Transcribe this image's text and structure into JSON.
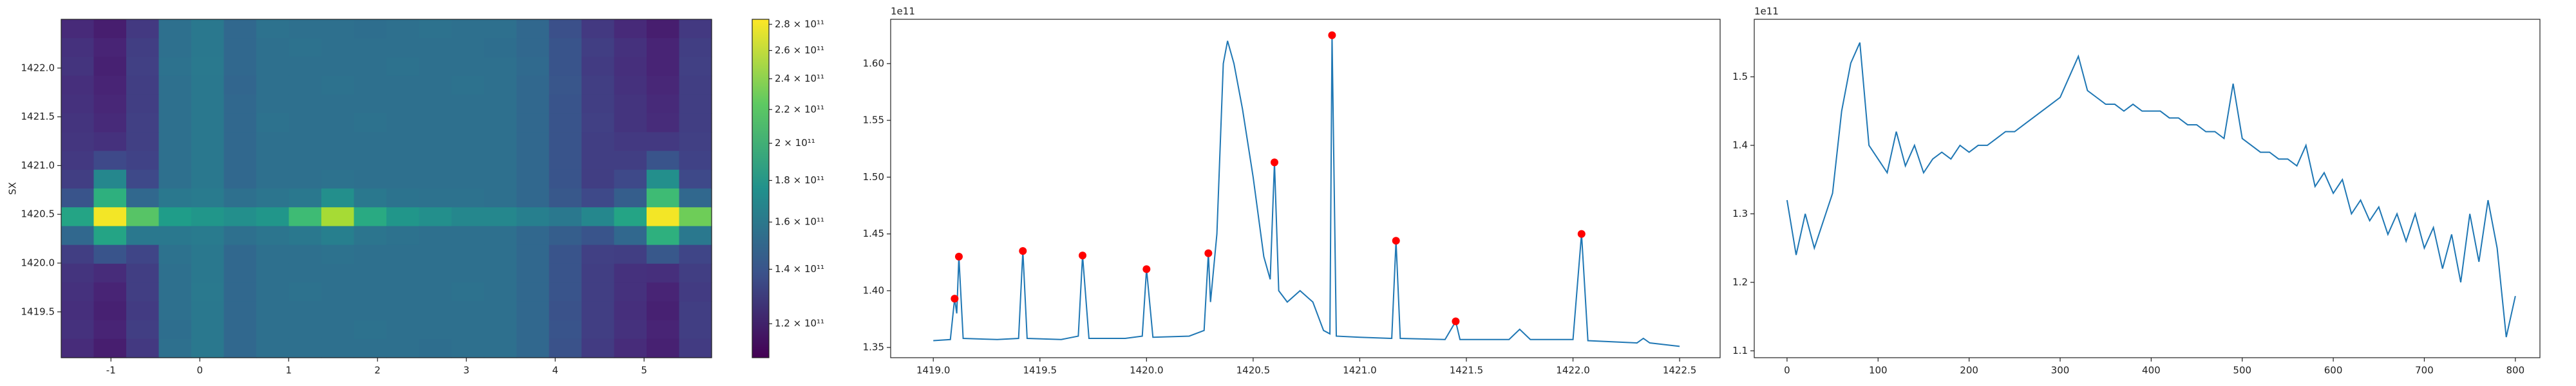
{
  "chart_data": [
    {
      "type": "heatmap",
      "ylabel": "SX",
      "colormap": "viridis",
      "xlim": [
        -1.56,
        5.76
      ],
      "ylim": [
        1419.03,
        1422.5
      ],
      "xticks": [
        -1,
        0,
        1,
        2,
        3,
        4,
        5
      ],
      "yticks": [
        {
          "value": 1419.5,
          "label": "1419.5"
        },
        {
          "value": 1420,
          "label": "1420.0"
        },
        {
          "value": 1420.5,
          "label": "1420.5"
        },
        {
          "value": 1421,
          "label": "1421.0"
        },
        {
          "value": 1421.5,
          "label": "1421.5"
        },
        {
          "value": 1422,
          "label": "1422.0"
        }
      ],
      "clim": [
        109000000000.0,
        284000000000.0
      ],
      "clog": true,
      "cticks": [
        {
          "value": 120000000000.0,
          "label": "1.2 × 10¹¹"
        },
        {
          "value": 140000000000.0,
          "label": "1.4 × 10¹¹"
        },
        {
          "value": 160000000000.0,
          "label": "1.6 × 10¹¹"
        },
        {
          "value": 180000000000.0,
          "label": "1.8 × 10¹¹"
        },
        {
          "value": 200000000000.0,
          "label": "2 × 10¹¹"
        },
        {
          "value": 220000000000.0,
          "label": "2.2 × 10¹¹"
        },
        {
          "value": 240000000000.0,
          "label": "2.4 × 10¹¹"
        },
        {
          "value": 260000000000.0,
          "label": "2.6 × 10¹¹"
        },
        {
          "value": 280000000000.0,
          "label": "2.8 × 10¹¹"
        }
      ],
      "z": [
        [
          122000000000.0,
          118000000000.0,
          128000000000.0,
          155000000000.0,
          160000000000.0,
          150000000000.0,
          156000000000.0,
          155000000000.0,
          155000000000.0,
          154000000000.0,
          155000000000.0,
          156000000000.0,
          155000000000.0,
          155000000000.0,
          150000000000.0,
          138000000000.0,
          128000000000.0,
          122000000000.0,
          118000000000.0,
          128000000000.0
        ],
        [
          125000000000.0,
          120000000000.0,
          130000000000.0,
          155000000000.0,
          160000000000.0,
          150000000000.0,
          155000000000.0,
          156000000000.0,
          155000000000.0,
          155000000000.0,
          155000000000.0,
          155000000000.0,
          155000000000.0,
          154000000000.0,
          150000000000.0,
          140000000000.0,
          130000000000.0,
          125000000000.0,
          120000000000.0,
          130000000000.0
        ],
        [
          126000000000.0,
          119000000000.0,
          131000000000.0,
          156000000000.0,
          161000000000.0,
          150000000000.0,
          155000000000.0,
          155000000000.0,
          155000000000.0,
          155000000000.0,
          156000000000.0,
          155000000000.0,
          155000000000.0,
          155000000000.0,
          151000000000.0,
          140000000000.0,
          129000000000.0,
          124000000000.0,
          120000000000.0,
          131000000000.0
        ],
        [
          124000000000.0,
          120000000000.0,
          130000000000.0,
          155000000000.0,
          160000000000.0,
          149000000000.0,
          155000000000.0,
          155000000000.0,
          156000000000.0,
          155000000000.0,
          155000000000.0,
          155000000000.0,
          156000000000.0,
          155000000000.0,
          150000000000.0,
          141000000000.0,
          130000000000.0,
          125000000000.0,
          121000000000.0,
          130000000000.0
        ],
        [
          125000000000.0,
          121000000000.0,
          130000000000.0,
          155000000000.0,
          160000000000.0,
          150000000000.0,
          155000000000.0,
          155000000000.0,
          155000000000.0,
          155000000000.0,
          155000000000.0,
          155000000000.0,
          155000000000.0,
          155000000000.0,
          150000000000.0,
          140000000000.0,
          130000000000.0,
          126000000000.0,
          122000000000.0,
          130000000000.0
        ],
        [
          126000000000.0,
          122000000000.0,
          131000000000.0,
          155000000000.0,
          160000000000.0,
          150000000000.0,
          156000000000.0,
          155000000000.0,
          155000000000.0,
          156000000000.0,
          155000000000.0,
          155000000000.0,
          155000000000.0,
          155000000000.0,
          150000000000.0,
          140000000000.0,
          131000000000.0,
          126000000000.0,
          123000000000.0,
          130000000000.0
        ],
        [
          127000000000.0,
          125000000000.0,
          131000000000.0,
          155000000000.0,
          160000000000.0,
          150000000000.0,
          155000000000.0,
          155000000000.0,
          155000000000.0,
          155000000000.0,
          155000000000.0,
          155000000000.0,
          155000000000.0,
          155000000000.0,
          150000000000.0,
          140000000000.0,
          130000000000.0,
          128000000000.0,
          128000000000.0,
          131000000000.0
        ],
        [
          128000000000.0,
          135000000000.0,
          132000000000.0,
          155000000000.0,
          160000000000.0,
          150000000000.0,
          155000000000.0,
          155000000000.0,
          155000000000.0,
          155000000000.0,
          155000000000.0,
          155000000000.0,
          155000000000.0,
          155000000000.0,
          150000000000.0,
          140000000000.0,
          130000000000.0,
          130000000000.0,
          140000000000.0,
          132000000000.0
        ],
        [
          130000000000.0,
          170000000000.0,
          135000000000.0,
          155000000000.0,
          160000000000.0,
          150000000000.0,
          155000000000.0,
          155000000000.0,
          156000000000.0,
          155000000000.0,
          155000000000.0,
          155000000000.0,
          155000000000.0,
          155000000000.0,
          150000000000.0,
          140000000000.0,
          130000000000.0,
          135000000000.0,
          175000000000.0,
          135000000000.0
        ],
        [
          140000000000.0,
          200000000000.0,
          150000000000.0,
          160000000000.0,
          162000000000.0,
          155000000000.0,
          158000000000.0,
          160000000000.0,
          175000000000.0,
          160000000000.0,
          157000000000.0,
          156000000000.0,
          156000000000.0,
          155000000000.0,
          150000000000.0,
          142000000000.0,
          135000000000.0,
          145000000000.0,
          210000000000.0,
          150000000000.0
        ],
        [
          190000000000.0,
          280000000000.0,
          220000000000.0,
          185000000000.0,
          180000000000.0,
          175000000000.0,
          180000000000.0,
          210000000000.0,
          250000000000.0,
          195000000000.0,
          180000000000.0,
          175000000000.0,
          170000000000.0,
          170000000000.0,
          165000000000.0,
          160000000000.0,
          170000000000.0,
          190000000000.0,
          280000000000.0,
          230000000000.0
        ],
        [
          150000000000.0,
          190000000000.0,
          160000000000.0,
          160000000000.0,
          162000000000.0,
          155000000000.0,
          158000000000.0,
          160000000000.0,
          165000000000.0,
          158000000000.0,
          156000000000.0,
          155000000000.0,
          155000000000.0,
          155000000000.0,
          150000000000.0,
          145000000000.0,
          140000000000.0,
          150000000000.0,
          200000000000.0,
          160000000000.0
        ],
        [
          130000000000.0,
          140000000000.0,
          133000000000.0,
          156000000000.0,
          160000000000.0,
          150000000000.0,
          155000000000.0,
          155000000000.0,
          156000000000.0,
          155000000000.0,
          155000000000.0,
          155000000000.0,
          155000000000.0,
          155000000000.0,
          150000000000.0,
          140000000000.0,
          131000000000.0,
          130000000000.0,
          142000000000.0,
          133000000000.0
        ],
        [
          126000000000.0,
          123000000000.0,
          130000000000.0,
          155000000000.0,
          160000000000.0,
          150000000000.0,
          155000000000.0,
          155000000000.0,
          155000000000.0,
          155000000000.0,
          155000000000.0,
          155000000000.0,
          155000000000.0,
          155000000000.0,
          150000000000.0,
          140000000000.0,
          130000000000.0,
          125000000000.0,
          124000000000.0,
          130000000000.0
        ],
        [
          125000000000.0,
          120000000000.0,
          130000000000.0,
          155000000000.0,
          161000000000.0,
          150000000000.0,
          155000000000.0,
          156000000000.0,
          155000000000.0,
          155000000000.0,
          155000000000.0,
          155000000000.0,
          156000000000.0,
          155000000000.0,
          150000000000.0,
          140000000000.0,
          130000000000.0,
          125000000000.0,
          120000000000.0,
          129000000000.0
        ],
        [
          124000000000.0,
          119000000000.0,
          129000000000.0,
          155000000000.0,
          160000000000.0,
          150000000000.0,
          155000000000.0,
          155000000000.0,
          155000000000.0,
          155000000000.0,
          155000000000.0,
          155000000000.0,
          155000000000.0,
          155000000000.0,
          150000000000.0,
          139000000000.0,
          130000000000.0,
          124000000000.0,
          119000000000.0,
          130000000000.0
        ],
        [
          125000000000.0,
          120000000000.0,
          130000000000.0,
          154000000000.0,
          160000000000.0,
          150000000000.0,
          155000000000.0,
          155000000000.0,
          155000000000.0,
          156000000000.0,
          155000000000.0,
          155000000000.0,
          155000000000.0,
          155000000000.0,
          150000000000.0,
          140000000000.0,
          130000000000.0,
          125000000000.0,
          120000000000.0,
          130000000000.0
        ],
        [
          123000000000.0,
          118000000000.0,
          128000000000.0,
          155000000000.0,
          160000000000.0,
          150000000000.0,
          155000000000.0,
          155000000000.0,
          155000000000.0,
          155000000000.0,
          155000000000.0,
          154000000000.0,
          155000000000.0,
          155000000000.0,
          150000000000.0,
          139000000000.0,
          129000000000.0,
          123000000000.0,
          119000000000.0,
          129000000000.0
        ]
      ]
    },
    {
      "type": "line",
      "offset_label": "1e11",
      "color": "#1f77b4",
      "xlim": [
        1418.8,
        1422.69
      ],
      "ylim": [
        1.341,
        1.639
      ],
      "xticks": [
        {
          "value": 1419,
          "label": "1419.0"
        },
        {
          "value": 1419.5,
          "label": "1419.5"
        },
        {
          "value": 1420,
          "label": "1420.0"
        },
        {
          "value": 1420.5,
          "label": "1420.5"
        },
        {
          "value": 1421,
          "label": "1421.0"
        },
        {
          "value": 1421.5,
          "label": "1421.5"
        },
        {
          "value": 1422,
          "label": "1422.0"
        },
        {
          "value": 1422.5,
          "label": "1422.5"
        }
      ],
      "yticks": [
        {
          "value": 1.35,
          "label": "1.35"
        },
        {
          "value": 1.4,
          "label": "1.40"
        },
        {
          "value": 1.45,
          "label": "1.45"
        },
        {
          "value": 1.5,
          "label": "1.50"
        },
        {
          "value": 1.55,
          "label": "1.55"
        },
        {
          "value": 1.6,
          "label": "1.60"
        }
      ],
      "x": [
        1419.0,
        1419.08,
        1419.1,
        1419.11,
        1419.12,
        1419.14,
        1419.3,
        1419.4,
        1419.42,
        1419.44,
        1419.6,
        1419.68,
        1419.7,
        1419.73,
        1419.9,
        1419.98,
        1420.0,
        1420.03,
        1420.2,
        1420.27,
        1420.29,
        1420.3,
        1420.33,
        1420.36,
        1420.38,
        1420.41,
        1420.45,
        1420.5,
        1420.55,
        1420.58,
        1420.6,
        1420.62,
        1420.66,
        1420.72,
        1420.78,
        1420.83,
        1420.86,
        1420.87,
        1420.89,
        1421.0,
        1421.15,
        1421.17,
        1421.19,
        1421.4,
        1421.45,
        1421.47,
        1421.7,
        1421.75,
        1421.8,
        1422.0,
        1422.04,
        1422.07,
        1422.3,
        1422.33,
        1422.36,
        1422.5
      ],
      "values": [
        1.356,
        1.357,
        1.393,
        1.38,
        1.43,
        1.358,
        1.357,
        1.358,
        1.435,
        1.358,
        1.357,
        1.36,
        1.431,
        1.358,
        1.358,
        1.36,
        1.419,
        1.359,
        1.36,
        1.365,
        1.433,
        1.39,
        1.45,
        1.6,
        1.62,
        1.6,
        1.56,
        1.5,
        1.43,
        1.41,
        1.513,
        1.4,
        1.39,
        1.4,
        1.39,
        1.365,
        1.362,
        1.625,
        1.36,
        1.359,
        1.358,
        1.444,
        1.358,
        1.357,
        1.373,
        1.357,
        1.357,
        1.366,
        1.357,
        1.357,
        1.45,
        1.356,
        1.354,
        1.358,
        1.354,
        1.351
      ],
      "markers": {
        "color": "#ff0000",
        "x": [
          1419.1,
          1419.12,
          1419.42,
          1419.7,
          1420.0,
          1420.29,
          1420.6,
          1420.87,
          1421.17,
          1421.45,
          1422.04
        ],
        "values": [
          1.393,
          1.43,
          1.435,
          1.431,
          1.419,
          1.433,
          1.513,
          1.625,
          1.444,
          1.373,
          1.45
        ]
      }
    },
    {
      "type": "line",
      "offset_label": "1e11",
      "color": "#1f77b4",
      "xlim": [
        -36,
        827
      ],
      "ylim": [
        1.09,
        1.584
      ],
      "xticks": [
        0,
        100,
        200,
        300,
        400,
        500,
        600,
        700,
        800
      ],
      "yticks": [
        1.1,
        1.2,
        1.3,
        1.4,
        1.5
      ],
      "x": [
        0,
        10,
        20,
        30,
        40,
        50,
        60,
        70,
        80,
        90,
        100,
        110,
        120,
        130,
        140,
        150,
        160,
        170,
        180,
        190,
        200,
        210,
        220,
        230,
        240,
        250,
        260,
        270,
        280,
        290,
        300,
        310,
        320,
        330,
        340,
        350,
        360,
        370,
        380,
        390,
        400,
        410,
        420,
        430,
        440,
        450,
        460,
        470,
        480,
        490,
        500,
        510,
        520,
        530,
        540,
        550,
        560,
        570,
        580,
        590,
        600,
        610,
        620,
        630,
        640,
        650,
        660,
        670,
        680,
        690,
        700,
        710,
        720,
        730,
        740,
        750,
        760,
        770,
        780,
        790,
        800
      ],
      "values": [
        1.32,
        1.24,
        1.3,
        1.25,
        1.29,
        1.33,
        1.45,
        1.52,
        1.55,
        1.4,
        1.38,
        1.36,
        1.42,
        1.37,
        1.4,
        1.36,
        1.38,
        1.39,
        1.38,
        1.4,
        1.39,
        1.4,
        1.4,
        1.41,
        1.42,
        1.42,
        1.43,
        1.44,
        1.45,
        1.46,
        1.47,
        1.5,
        1.53,
        1.48,
        1.47,
        1.46,
        1.46,
        1.45,
        1.46,
        1.45,
        1.45,
        1.45,
        1.44,
        1.44,
        1.43,
        1.43,
        1.42,
        1.42,
        1.41,
        1.49,
        1.41,
        1.4,
        1.39,
        1.39,
        1.38,
        1.38,
        1.37,
        1.4,
        1.34,
        1.36,
        1.33,
        1.35,
        1.3,
        1.32,
        1.29,
        1.31,
        1.27,
        1.3,
        1.26,
        1.3,
        1.25,
        1.28,
        1.22,
        1.27,
        1.2,
        1.3,
        1.23,
        1.32,
        1.25,
        1.12,
        1.18
      ]
    }
  ]
}
